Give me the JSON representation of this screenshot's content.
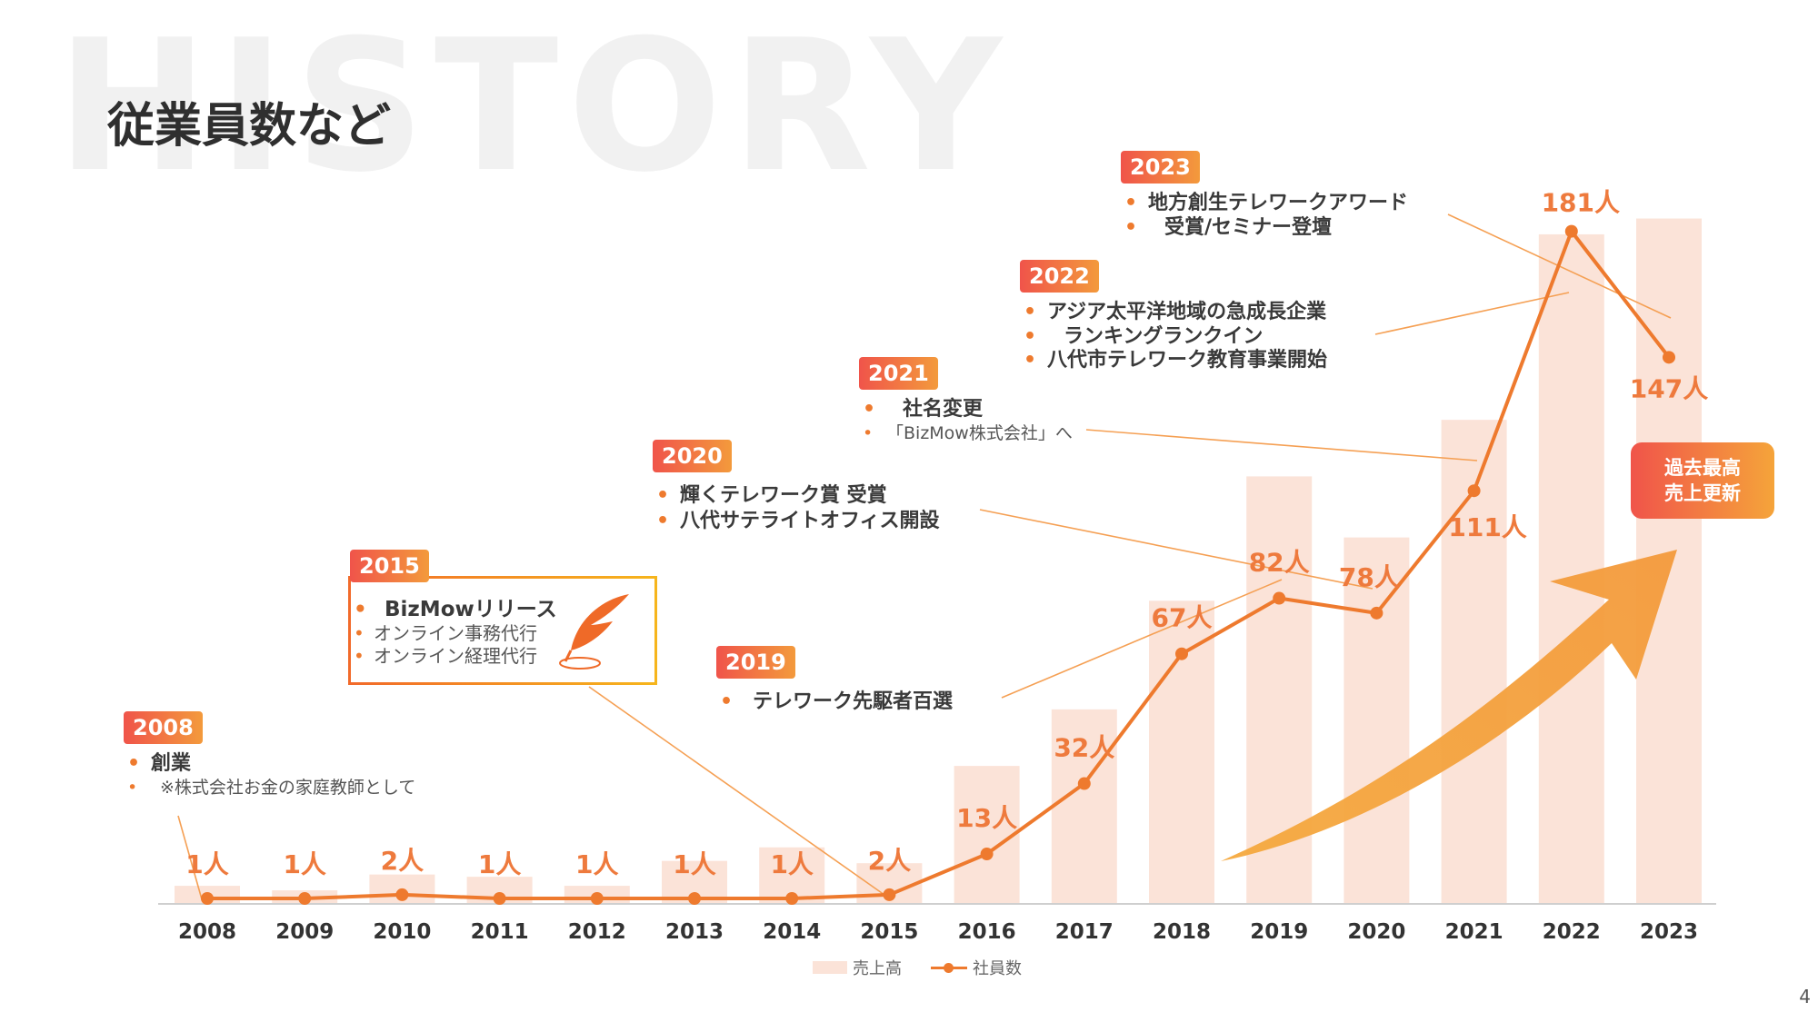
{
  "background_word": "HISTORY",
  "title": "従業員数など",
  "page_number": "4",
  "record_badge": {
    "line1": "過去最高",
    "line2": "売上更新"
  },
  "legend": {
    "bar": "売上高",
    "line": "社員数"
  },
  "colors": {
    "accent": "#ee7a2e",
    "bar": "#fbe3d8",
    "label": "#ee7a3d",
    "tag_start": "#f0544a",
    "tag_end": "#f39a3c"
  },
  "chart_data": {
    "type": "bar+line",
    "categories": [
      "2008",
      "2009",
      "2010",
      "2011",
      "2012",
      "2013",
      "2014",
      "2015",
      "2016",
      "2017",
      "2018",
      "2019",
      "2020",
      "2021",
      "2022",
      "2023"
    ],
    "series": [
      {
        "name": "売上高",
        "type": "bar",
        "values": [
          0.8,
          0.6,
          1.3,
          1.2,
          0.8,
          1.9,
          2.5,
          1.8,
          6.1,
          8.6,
          13.4,
          18.9,
          16.2,
          21.4,
          29.6,
          30.3
        ]
      },
      {
        "name": "社員数",
        "type": "line",
        "values": [
          1,
          1,
          2,
          1,
          1,
          1,
          1,
          2,
          13,
          32,
          67,
          82,
          78,
          111,
          181,
          147
        ],
        "data_labels": [
          "1人",
          "1人",
          "2人",
          "1人",
          "1人",
          "1人",
          "1人",
          "2人",
          "13人",
          "32人",
          "67人",
          "82人",
          "78人",
          "111人",
          "181人",
          "147人"
        ]
      }
    ],
    "legend": "bottom",
    "grid": false
  },
  "annotations": {
    "a2008": {
      "year": "2008",
      "items": [
        "創業"
      ],
      "sub": [
        "※株式会社お金の家庭教師として"
      ]
    },
    "a2015": {
      "year": "2015",
      "items": [
        "BizMowリリース"
      ],
      "sub": [
        "オンライン事務代行",
        "オンライン経理代行"
      ]
    },
    "a2019": {
      "year": "2019",
      "items": [
        "テレワーク先駆者百選"
      ],
      "sub": []
    },
    "a2020": {
      "year": "2020",
      "items": [
        "輝くテレワーク賞 受賞",
        "八代サテライトオフィス開設"
      ],
      "sub": []
    },
    "a2021": {
      "year": "2021",
      "items": [
        "社名変更"
      ],
      "sub": [
        "「BizMow株式会社」へ"
      ]
    },
    "a2022": {
      "year": "2022",
      "items": [
        "アジア太平洋地域の急成長企業",
        "ランキングランクイン",
        "八代市テレワーク教育事業開始"
      ],
      "sub": []
    },
    "a2023": {
      "year": "2023",
      "items": [
        "地方創生テレワークアワード",
        "受賞/セミナー登壇"
      ],
      "sub": []
    }
  }
}
